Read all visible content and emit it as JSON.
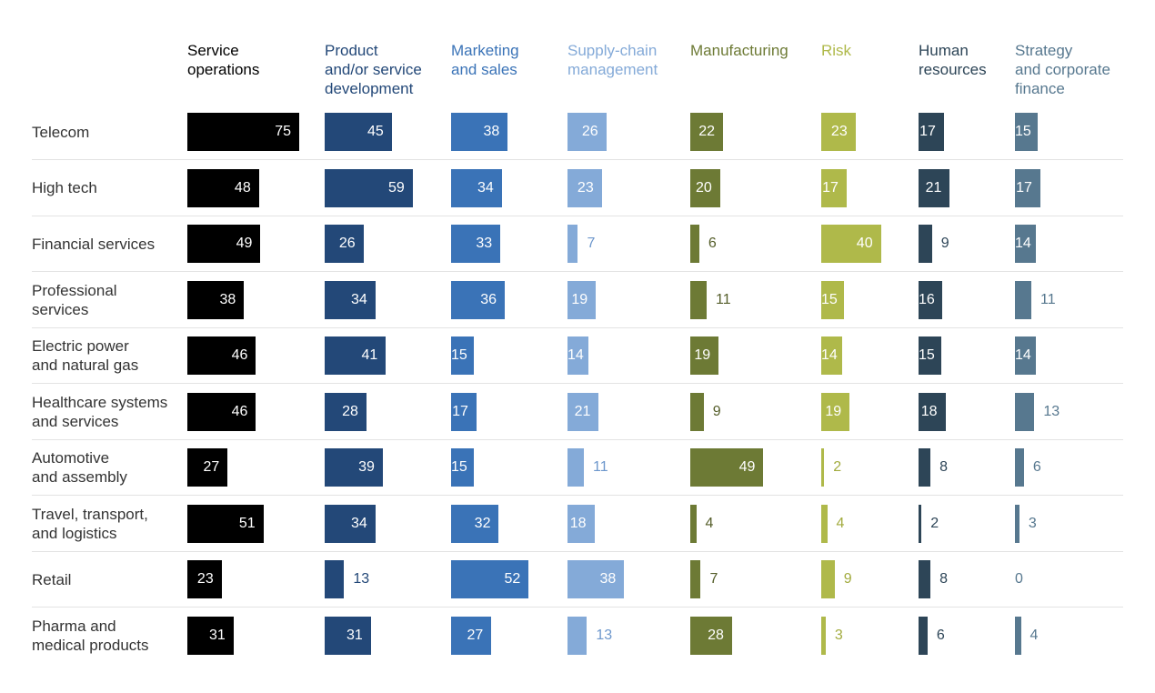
{
  "chart_data": {
    "type": "bar",
    "title": "",
    "categories": [
      "Telecom",
      "High tech",
      "Financial services",
      "Professional\nservices",
      "Electric power\nand natural gas",
      "Healthcare systems\nand services",
      "Automotive\nand assembly",
      "Travel, transport,\nand logistics",
      "Retail",
      "Pharma and\nmedical products"
    ],
    "series": [
      {
        "name": "Service\noperations",
        "color": "#000000",
        "values": [
          75,
          48,
          49,
          38,
          46,
          46,
          27,
          51,
          23,
          31
        ]
      },
      {
        "name": "Product\nand/or service\ndevelopment",
        "color": "#234878",
        "values": [
          45,
          59,
          26,
          34,
          41,
          28,
          39,
          34,
          13,
          31
        ]
      },
      {
        "name": "Marketing\nand sales",
        "color": "#3a73b7",
        "values": [
          38,
          34,
          33,
          36,
          15,
          17,
          15,
          32,
          52,
          27
        ]
      },
      {
        "name": "Supply-chain\nmanagement",
        "color": "#84aad8",
        "values": [
          26,
          23,
          7,
          19,
          14,
          21,
          11,
          18,
          38,
          13
        ]
      },
      {
        "name": "Manufacturing",
        "color": "#6d7a35",
        "values": [
          22,
          20,
          6,
          11,
          19,
          9,
          49,
          4,
          7,
          28
        ]
      },
      {
        "name": "Risk",
        "color": "#afb94a",
        "values": [
          23,
          17,
          40,
          15,
          14,
          19,
          2,
          4,
          9,
          3
        ]
      },
      {
        "name": "Human\nresources",
        "color": "#2d4557",
        "values": [
          17,
          21,
          9,
          16,
          15,
          18,
          8,
          2,
          8,
          6
        ]
      },
      {
        "name": "Strategy\nand corporate\nfinance",
        "color": "#57788f",
        "values": [
          15,
          17,
          14,
          11,
          14,
          13,
          6,
          3,
          0,
          4
        ]
      }
    ],
    "value_max": 75,
    "legend": "column headers at top"
  }
}
